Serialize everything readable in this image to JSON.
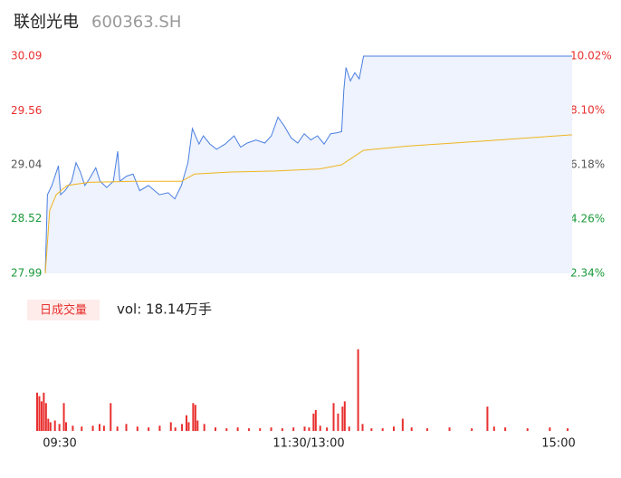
{
  "chart_data": {
    "type": "intraday",
    "title": "联创光电",
    "subtitle": "600363.SH",
    "xlim": [
      0,
      240
    ],
    "xticks": [
      {
        "value": 0,
        "label": "09:30"
      },
      {
        "value": 120,
        "label": "11:30/13:00"
      },
      {
        "value": 240,
        "label": "15:00"
      }
    ],
    "ylim": [
      27.99,
      30.09
    ],
    "yticks": [
      30.09,
      29.56,
      29.04,
      28.52,
      27.99
    ],
    "ytick_colors": [
      "#e8302f",
      "#e8302f",
      "#555555",
      "#1a9a3a",
      "#1a9a3a"
    ],
    "y2lim": [
      2.34,
      10.02
    ],
    "y2ticks": [
      {
        "value": 10.02,
        "label": "10.02%"
      },
      {
        "value": 8.1,
        "label": "8.10%"
      },
      {
        "value": 6.18,
        "label": "6.18%"
      },
      {
        "value": 4.26,
        "label": "4.26%"
      },
      {
        "value": 2.34,
        "label": "2.34%"
      }
    ],
    "y2tick_colors": [
      "#e8302f",
      "#e8302f",
      "#555555",
      "#1a9a3a",
      "#1a9a3a"
    ],
    "series": [
      {
        "name": "price",
        "color": "#4a7fe0",
        "fill": "#eef3fd",
        "x": [
          0,
          1,
          3,
          6,
          7,
          9,
          12,
          14,
          16,
          18,
          20,
          23,
          25,
          28,
          31,
          33,
          34,
          37,
          40,
          43,
          47,
          52,
          56,
          59,
          62,
          65,
          67,
          70,
          72,
          75,
          78,
          82,
          86,
          89,
          92,
          96,
          100,
          103,
          106,
          109,
          112,
          115,
          118,
          121,
          124,
          127,
          130,
          133,
          135,
          136,
          137,
          139,
          141,
          143,
          145,
          240
        ],
        "values": [
          27.99,
          28.75,
          28.84,
          29.03,
          28.75,
          28.79,
          28.88,
          29.06,
          28.97,
          28.84,
          28.9,
          29.01,
          28.88,
          28.82,
          28.88,
          29.17,
          28.88,
          28.93,
          28.95,
          28.79,
          28.84,
          28.75,
          28.77,
          28.71,
          28.84,
          29.06,
          29.39,
          29.24,
          29.32,
          29.24,
          29.19,
          29.24,
          29.32,
          29.21,
          29.25,
          29.28,
          29.25,
          29.32,
          29.5,
          29.41,
          29.3,
          29.25,
          29.34,
          29.28,
          29.32,
          29.24,
          29.34,
          29.35,
          29.36,
          29.76,
          29.98,
          29.85,
          29.93,
          29.87,
          30.09,
          30.09
        ]
      },
      {
        "name": "average",
        "color": "#f0b420",
        "x": [
          0,
          2,
          5,
          10,
          20,
          40,
          62,
          68,
          85,
          105,
          125,
          135,
          145,
          165,
          200,
          240
        ],
        "values": [
          27.99,
          28.6,
          28.75,
          28.84,
          28.87,
          28.88,
          28.88,
          28.95,
          28.97,
          28.98,
          29.0,
          29.04,
          29.18,
          29.22,
          29.27,
          29.33
        ]
      }
    ],
    "volume_label": "日成交量",
    "volume_text": "vol: 18.14万手",
    "volume": {
      "color": "#e8302f",
      "ylim": [
        0,
        100
      ],
      "x": [
        0,
        1,
        2,
        3,
        4,
        5,
        6,
        8,
        10,
        12,
        13,
        16,
        20,
        25,
        28,
        30,
        33,
        36,
        40,
        45,
        50,
        55,
        60,
        62,
        65,
        67,
        68,
        70,
        71,
        72,
        75,
        80,
        85,
        90,
        95,
        100,
        105,
        110,
        115,
        120,
        122,
        124,
        125,
        127,
        130,
        133,
        135,
        137,
        138,
        140,
        144,
        146,
        150,
        155,
        160,
        164,
        168,
        175,
        185,
        195,
        202,
        205,
        210,
        220,
        230,
        238
      ],
      "values": [
        44,
        40,
        34,
        44,
        32,
        14,
        10,
        12,
        8,
        32,
        10,
        6,
        5,
        6,
        8,
        6,
        32,
        5,
        8,
        5,
        4,
        6,
        10,
        4,
        8,
        18,
        10,
        32,
        30,
        12,
        8,
        4,
        3,
        4,
        3,
        3,
        4,
        3,
        4,
        5,
        4,
        20,
        24,
        6,
        4,
        32,
        20,
        28,
        34,
        5,
        94,
        8,
        3,
        3,
        5,
        14,
        4,
        3,
        4,
        3,
        28,
        5,
        4,
        3,
        4,
        3
      ]
    }
  }
}
